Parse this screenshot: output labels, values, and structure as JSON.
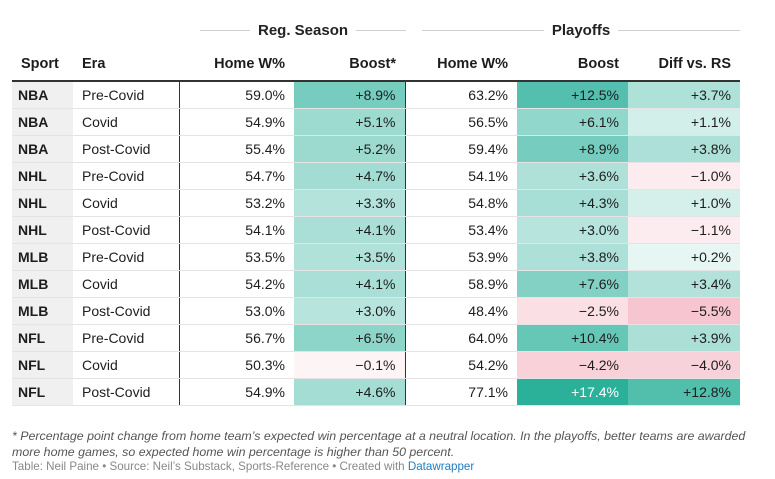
{
  "group_headers": {
    "regular": "Reg. Season",
    "playoffs": "Playoffs"
  },
  "columns": [
    "Sport",
    "Era",
    "Home W%",
    "Boost*",
    "Home W%",
    "Boost",
    "Diff vs. RS"
  ],
  "rows": [
    [
      "NBA",
      "Pre-Covid",
      "59.0%",
      "+8.9%",
      "63.2%",
      "+12.5%",
      "+3.7%"
    ],
    [
      "NBA",
      "Covid",
      "54.9%",
      "+5.1%",
      "56.5%",
      "+6.1%",
      "+1.1%"
    ],
    [
      "NBA",
      "Post-Covid",
      "55.4%",
      "+5.2%",
      "59.4%",
      "+8.9%",
      "+3.8%"
    ],
    [
      "NHL",
      "Pre-Covid",
      "54.7%",
      "+4.7%",
      "54.1%",
      "+3.6%",
      "−1.0%"
    ],
    [
      "NHL",
      "Covid",
      "53.2%",
      "+3.3%",
      "54.8%",
      "+4.3%",
      "+1.0%"
    ],
    [
      "NHL",
      "Post-Covid",
      "54.1%",
      "+4.1%",
      "53.4%",
      "+3.0%",
      "−1.1%"
    ],
    [
      "MLB",
      "Pre-Covid",
      "53.5%",
      "+3.5%",
      "53.9%",
      "+3.8%",
      "+0.2%"
    ],
    [
      "MLB",
      "Covid",
      "54.2%",
      "+4.1%",
      "58.9%",
      "+7.6%",
      "+3.4%"
    ],
    [
      "MLB",
      "Post-Covid",
      "53.0%",
      "+3.0%",
      "48.4%",
      "−2.5%",
      "−5.5%"
    ],
    [
      "NFL",
      "Pre-Covid",
      "56.7%",
      "+6.5%",
      "64.0%",
      "+10.4%",
      "+3.9%"
    ],
    [
      "NFL",
      "Covid",
      "50.3%",
      "−0.1%",
      "54.2%",
      "−4.2%",
      "−4.0%"
    ],
    [
      "NFL",
      "Post-Covid",
      "54.9%",
      "+4.6%",
      "77.1%",
      "+17.4%",
      "+12.8%"
    ]
  ],
  "heat": {
    "boost_rs": [
      8.9,
      5.1,
      5.2,
      4.7,
      3.3,
      4.1,
      3.5,
      4.1,
      3.0,
      6.5,
      -0.1,
      4.6
    ],
    "boost_po": [
      12.5,
      6.1,
      8.9,
      3.6,
      4.3,
      3.0,
      3.8,
      7.6,
      -2.5,
      10.4,
      -4.2,
      17.4
    ],
    "diff": [
      3.7,
      1.1,
      3.8,
      -1.0,
      1.0,
      -1.1,
      0.2,
      3.4,
      -5.5,
      3.9,
      -4.0,
      12.8
    ],
    "positive_color": "#2bb09a",
    "negative_color": "#f2a9b9"
  },
  "footnote": "* Percentage point change from home team’s expected win percentage at a neutral location. In the playoffs, better teams are awarded more home games, so expected home win percentage is higher than 50 percent.",
  "credits": {
    "text": "Table: Neil Paine • Source: Neil’s Substack, Sports-Reference • Created with ",
    "link": "Datawrapper"
  }
}
